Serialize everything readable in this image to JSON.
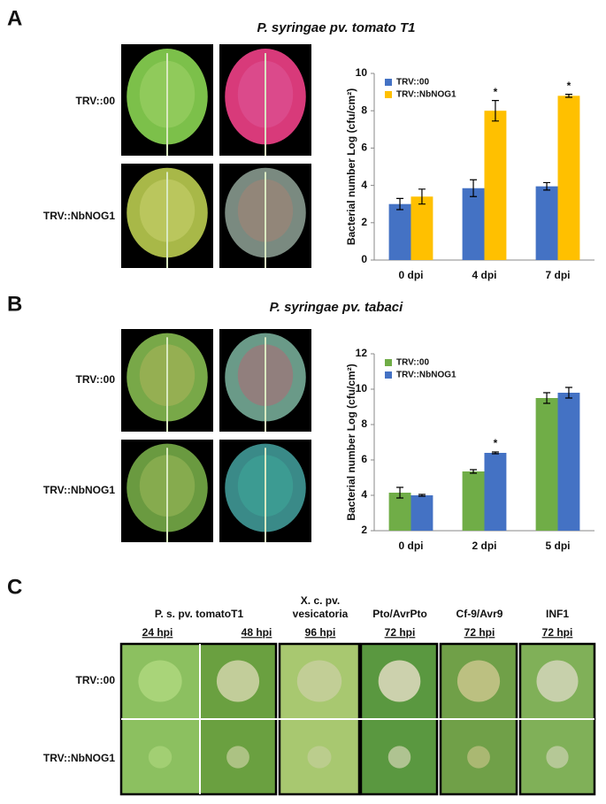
{
  "panels": [
    {
      "label": "A",
      "title": "P. syringae pv. tomato T1",
      "rows": [
        "TRV::00",
        "TRV::NbNOG1"
      ]
    },
    {
      "label": "B",
      "title": "P. syringae pv. tabaci",
      "rows": [
        "TRV::00",
        "TRV::NbNOG1"
      ]
    }
  ],
  "chart_data": [
    {
      "type": "bar",
      "ylabel": "Bacterial number Log (cfu/cm²)",
      "categories": [
        "0 dpi",
        "4 dpi",
        "7 dpi"
      ],
      "ylim": [
        0,
        10
      ],
      "yticks": [
        0,
        2,
        4,
        6,
        8,
        10
      ],
      "legend": "upper left",
      "series": [
        {
          "name": "TRV::00",
          "color": "#4472c4",
          "values": [
            3.0,
            3.85,
            3.95
          ],
          "errors": [
            0.3,
            0.45,
            0.2
          ],
          "significance": [
            null,
            null,
            null
          ]
        },
        {
          "name": "TRV::NbNOG1",
          "color": "#ffc000",
          "values": [
            3.4,
            8.0,
            8.8
          ],
          "errors": [
            0.4,
            0.55,
            0.08
          ],
          "significance": [
            null,
            "*",
            "*"
          ]
        }
      ]
    },
    {
      "type": "bar",
      "ylabel": "Bacterial number Log (cfu/cm²)",
      "categories": [
        "0 dpi",
        "2 dpi",
        "5 dpi"
      ],
      "ylim": [
        2,
        12
      ],
      "yticks": [
        2,
        4,
        6,
        8,
        10,
        12
      ],
      "legend": "upper left",
      "series": [
        {
          "name": "TRV::00",
          "color": "#70ad47",
          "values": [
            4.15,
            5.35,
            9.5
          ],
          "errors": [
            0.3,
            0.1,
            0.3
          ],
          "significance": [
            null,
            null,
            null
          ]
        },
        {
          "name": "TRV::NbNOG1",
          "color": "#4472c4",
          "values": [
            4.0,
            6.4,
            9.8
          ],
          "errors": [
            0.05,
            0.05,
            0.3
          ],
          "significance": [
            null,
            "*",
            null
          ]
        }
      ]
    }
  ],
  "panel_c": {
    "label": "C",
    "groups": [
      [
        "P. s. pv. tomatoT1"
      ],
      [
        "X. c. pv.",
        "vesicatoria"
      ],
      [
        "Pto/AvrPto"
      ],
      [
        "Cf-9/Avr9"
      ],
      [
        "INF1"
      ]
    ],
    "times": [
      "24 hpi",
      "48 hpi",
      "96 hpi",
      "72 hpi",
      "72 hpi",
      "72 hpi"
    ],
    "rows": [
      "TRV::00",
      "TRV::NbNOG1"
    ]
  }
}
